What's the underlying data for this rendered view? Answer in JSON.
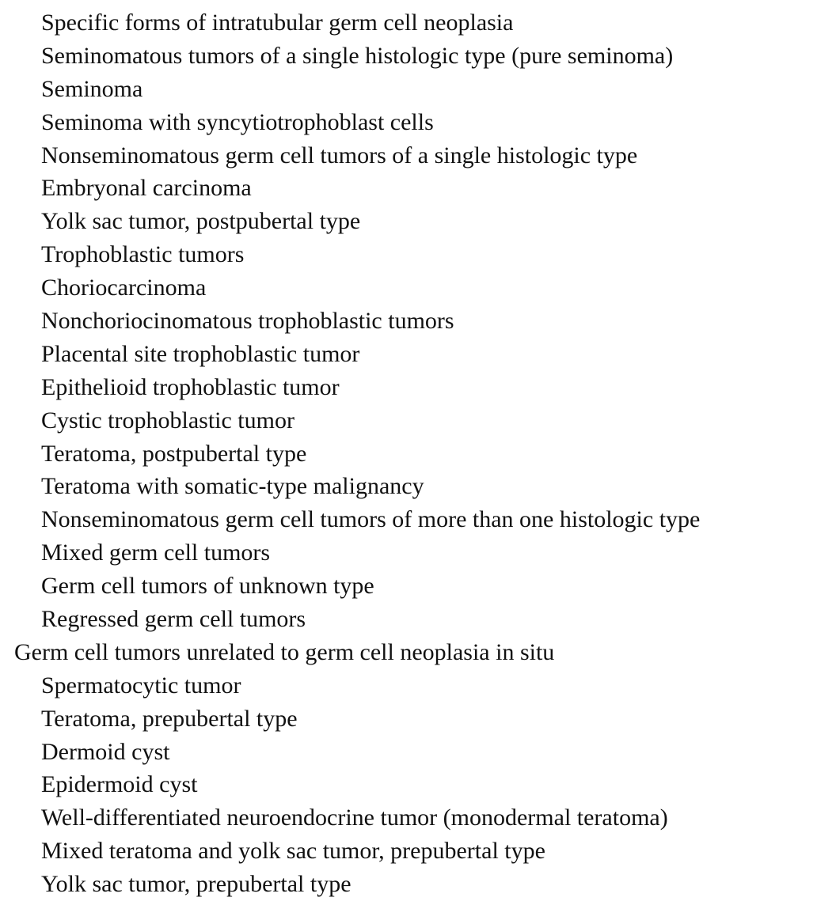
{
  "items": [
    {
      "text": "Specific forms of intratubular germ cell neoplasia",
      "level": 2
    },
    {
      "text": "Seminomatous tumors of a single histologic type (pure seminoma)",
      "level": 2
    },
    {
      "text": "Seminoma",
      "level": 2
    },
    {
      "text": "Seminoma with syncytiotrophoblast cells",
      "level": 2
    },
    {
      "text": "Nonseminomatous germ cell tumors of a single histologic type",
      "level": 2
    },
    {
      "text": "Embryonal carcinoma",
      "level": 2
    },
    {
      "text": "Yolk sac tumor, postpubertal type",
      "level": 2
    },
    {
      "text": "Trophoblastic tumors",
      "level": 2
    },
    {
      "text": "Choriocarcinoma",
      "level": 2
    },
    {
      "text": "Nonchoriocinomatous trophoblastic tumors",
      "level": 2
    },
    {
      "text": "Placental site trophoblastic tumor",
      "level": 2
    },
    {
      "text": "Epithelioid trophoblastic tumor",
      "level": 2
    },
    {
      "text": "Cystic trophoblastic tumor",
      "level": 2
    },
    {
      "text": "Teratoma, postpubertal type",
      "level": 2
    },
    {
      "text": "Teratoma with somatic-type malignancy",
      "level": 2
    },
    {
      "text": "Nonseminomatous germ cell tumors of more than one histologic type",
      "level": 2
    },
    {
      "text": "Mixed germ cell tumors",
      "level": 2
    },
    {
      "text": "Germ cell tumors of unknown type",
      "level": 2
    },
    {
      "text": "Regressed germ cell tumors",
      "level": 2
    },
    {
      "text": "Germ cell tumors unrelated to germ cell neoplasia in situ",
      "level": 1
    },
    {
      "text": "Spermatocytic tumor",
      "level": 2
    },
    {
      "text": "Teratoma, prepubertal type",
      "level": 2
    },
    {
      "text": "Dermoid cyst",
      "level": 2
    },
    {
      "text": "Epidermoid cyst",
      "level": 2
    },
    {
      "text": "Well-differentiated neuroendocrine tumor (monodermal teratoma)",
      "level": 2
    },
    {
      "text": "Mixed teratoma and yolk sac tumor, prepubertal type",
      "level": 2
    },
    {
      "text": "Yolk sac tumor, prepubertal type",
      "level": 2
    }
  ]
}
